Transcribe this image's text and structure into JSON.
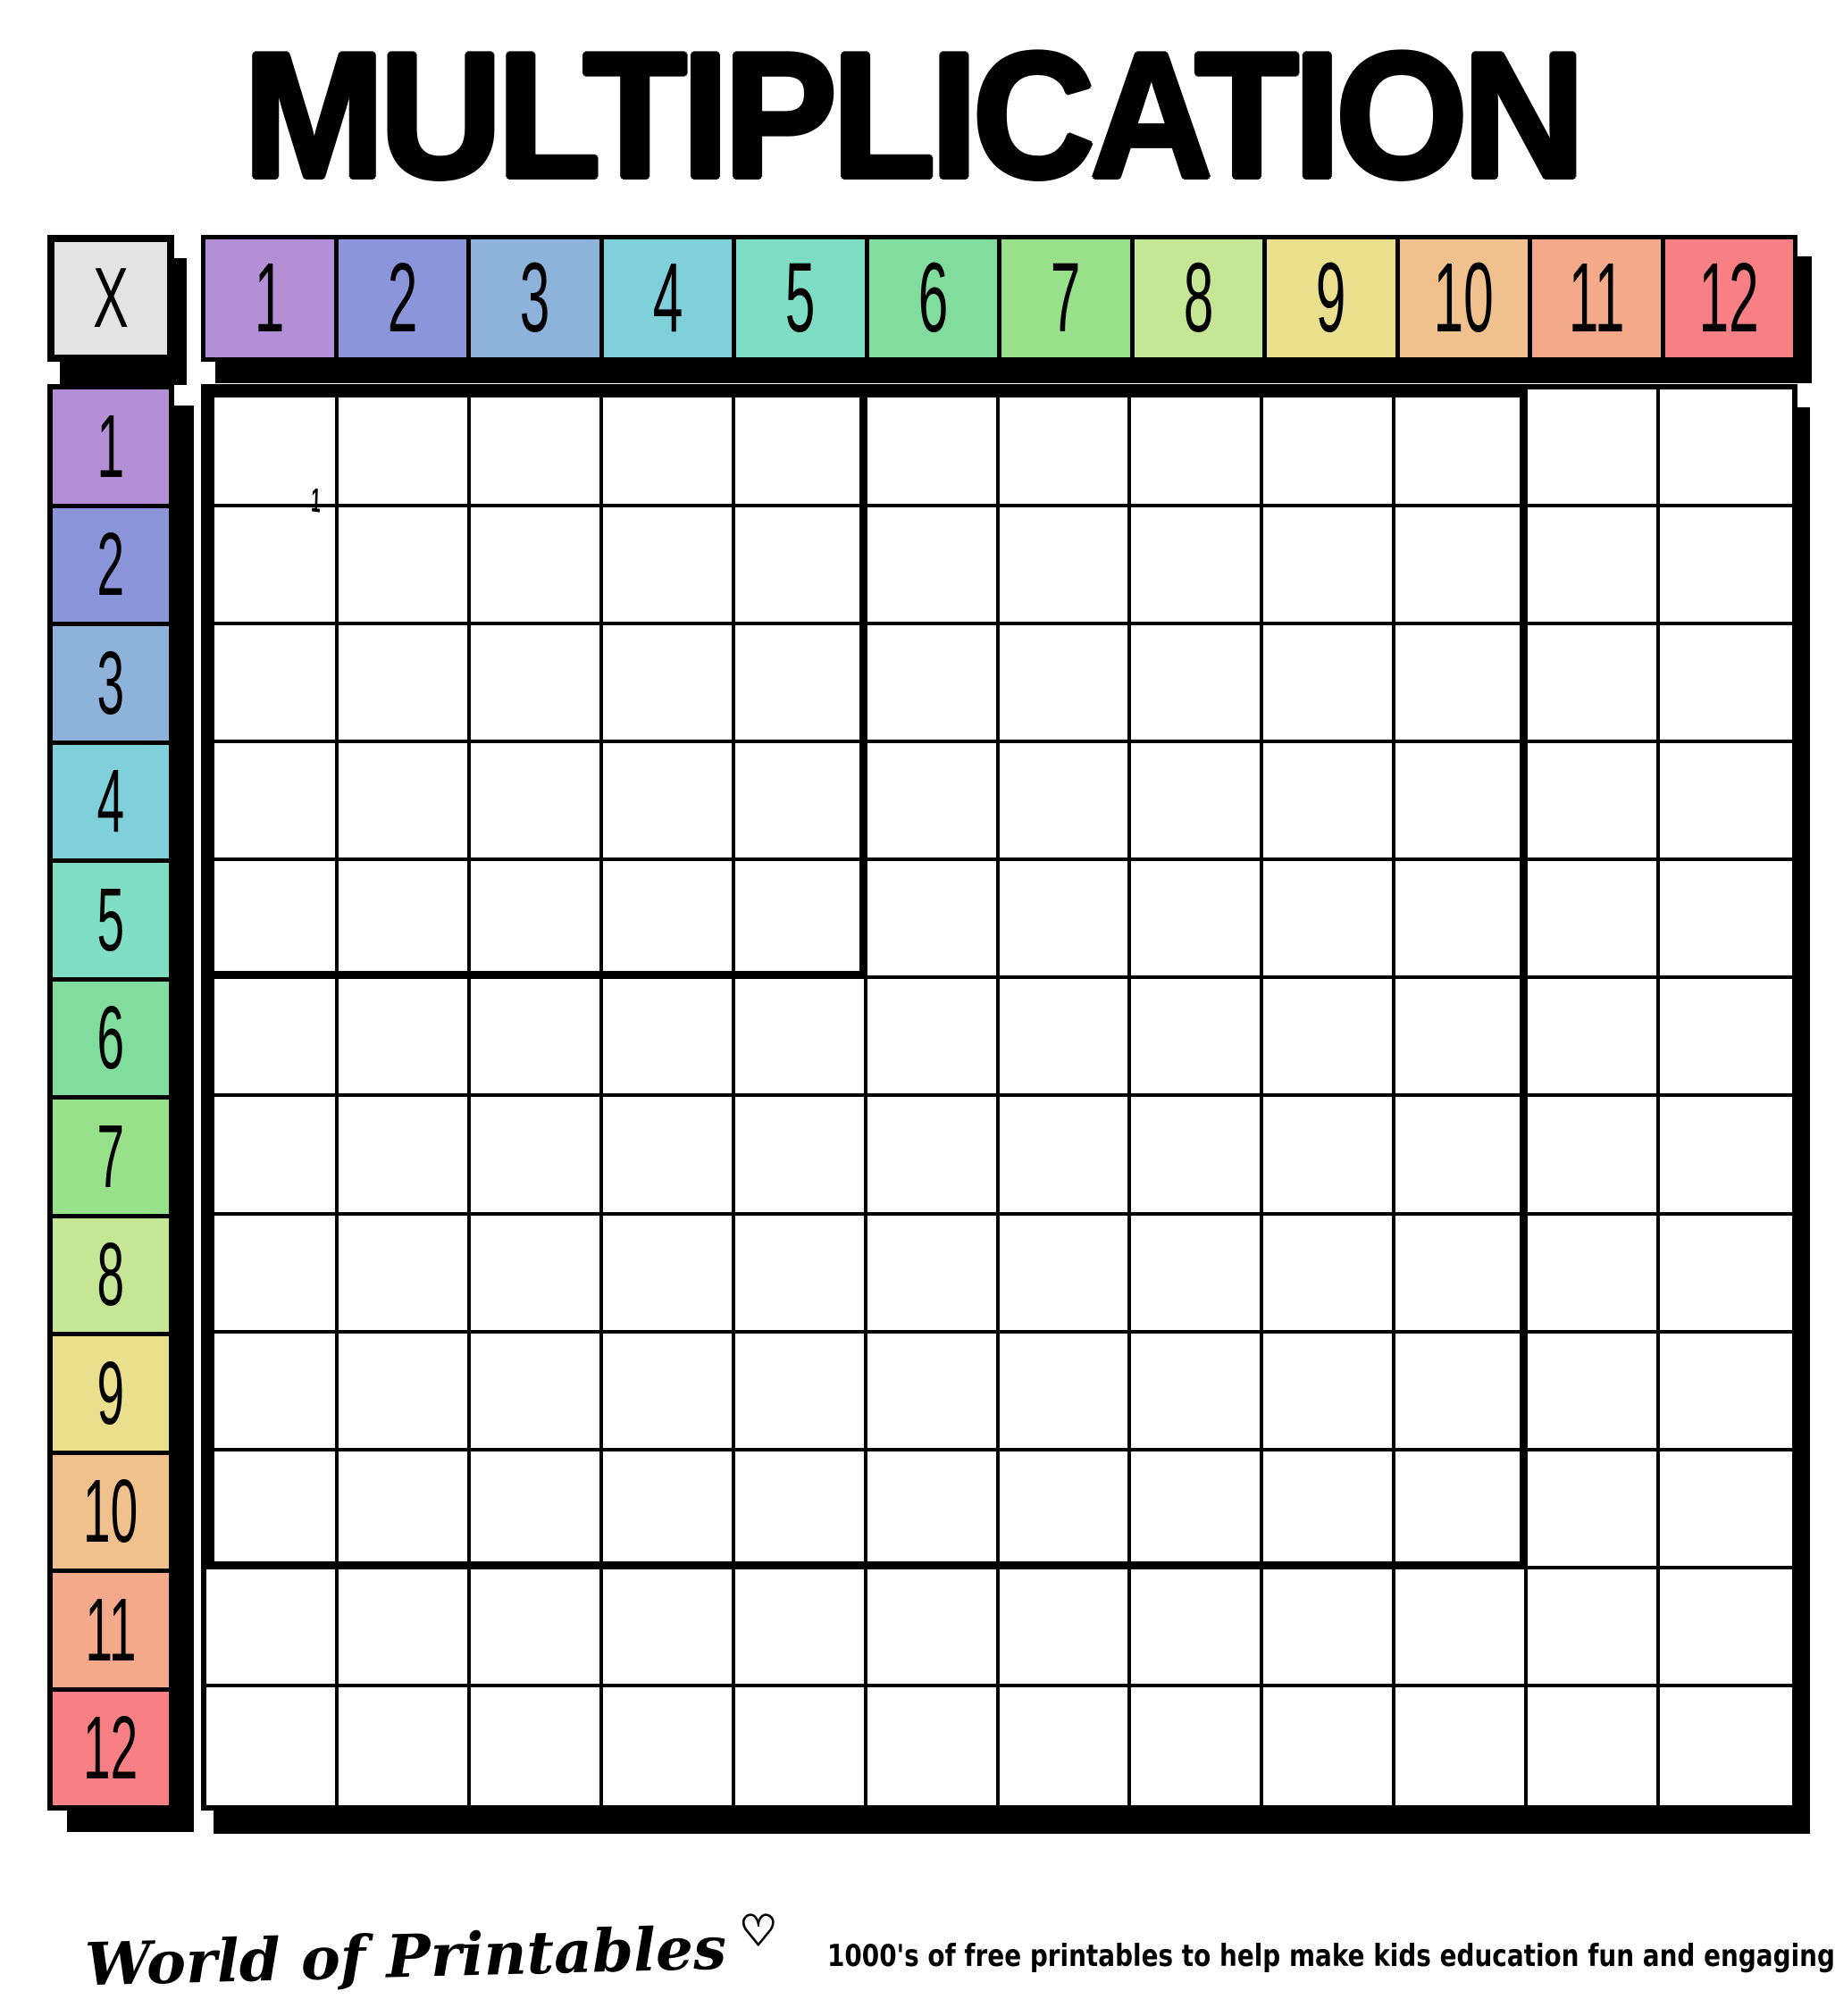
{
  "title": "MULTIPLICATION",
  "table": {
    "corner_label": "X",
    "corner_bg": "#e3e3e3",
    "border_color": "#000000",
    "cell_bg": "#ffffff",
    "columns": [
      {
        "label": "1",
        "color": "#b58fd6"
      },
      {
        "label": "2",
        "color": "#8b95da"
      },
      {
        "label": "3",
        "color": "#8db3db"
      },
      {
        "label": "4",
        "color": "#80d0dc"
      },
      {
        "label": "5",
        "color": "#7fddc4"
      },
      {
        "label": "6",
        "color": "#81dd9d"
      },
      {
        "label": "7",
        "color": "#98e18a"
      },
      {
        "label": "8",
        "color": "#c5e694"
      },
      {
        "label": "9",
        "color": "#eadf8d"
      },
      {
        "label": "10",
        "color": "#f0c18c"
      },
      {
        "label": "11",
        "color": "#f4a98a"
      },
      {
        "label": "12",
        "color": "#f88084"
      }
    ],
    "rows": [
      {
        "label": "1",
        "color": "#b58fd6"
      },
      {
        "label": "2",
        "color": "#8b95da"
      },
      {
        "label": "3",
        "color": "#8db3db"
      },
      {
        "label": "4",
        "color": "#80d0dc"
      },
      {
        "label": "5",
        "color": "#7fddc4"
      },
      {
        "label": "6",
        "color": "#81dd9d"
      },
      {
        "label": "7",
        "color": "#98e18a"
      },
      {
        "label": "8",
        "color": "#c5e694"
      },
      {
        "label": "9",
        "color": "#eadf8d"
      },
      {
        "label": "10",
        "color": "#f0c18c"
      },
      {
        "label": "11",
        "color": "#f4a98a"
      },
      {
        "label": "12",
        "color": "#f88084"
      }
    ],
    "grid": {
      "cols": 12,
      "rows": 12,
      "thick_blocks": [
        5,
        10
      ]
    },
    "stray_mark": "1"
  },
  "footer": {
    "brand": "World of Printables",
    "heart": "♡",
    "tagline": "1000's of free printables to help make kids education fun and engaging"
  }
}
